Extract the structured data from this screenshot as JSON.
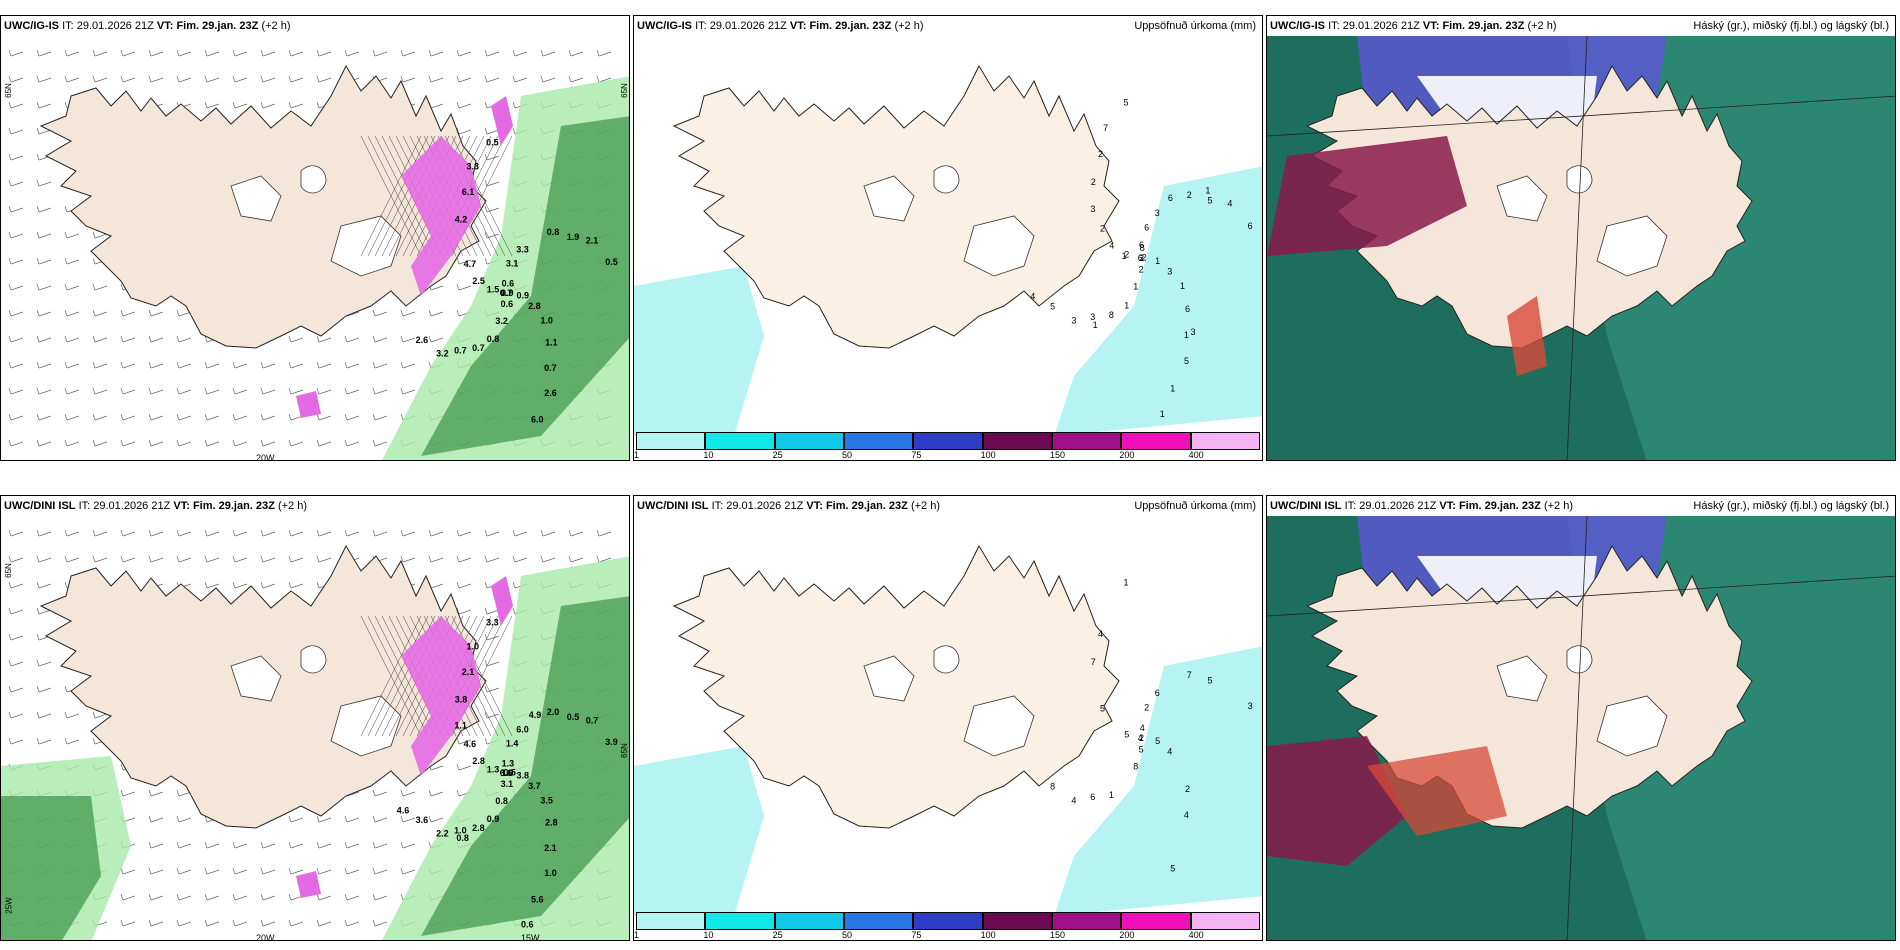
{
  "rows": [
    {
      "model": "UWC/IG-IS",
      "it_label": "IT:",
      "it_value": "29.01.2026 21Z",
      "vt_label": "VT:",
      "vt_value": "Fim. 29.jan. 23Z",
      "lead": "(+2 h)",
      "lon_labels": [
        "20W"
      ],
      "lat_labels": [
        "65N",
        "65N"
      ],
      "mid_numbers": [
        "2",
        "3",
        "8",
        "1",
        "2",
        "5",
        "1",
        "2",
        "3",
        "5",
        "3",
        "1",
        "2",
        "6",
        "8",
        "5",
        "6",
        "6",
        "2",
        "2",
        "2",
        "1",
        "3",
        "6",
        "5",
        "4",
        "4",
        "1",
        "7",
        "1",
        "4",
        "6",
        "1",
        "3",
        "2",
        "1",
        "6",
        "3",
        "1",
        "1"
      ],
      "left_numbers": [
        "0.9",
        "0.7",
        "0.6",
        "0.7",
        "1.5",
        "1.9",
        "3.2",
        "6.1",
        "2.8",
        "2.6",
        "3.3",
        "6.0",
        "4.7",
        "0.5",
        "0.7",
        "0.5",
        "1.1",
        "0.7",
        "0.8",
        "0.6",
        "4.2",
        "0.9",
        "3.2",
        "3.1",
        "2.6",
        "2.5",
        "2.1",
        "0.8",
        "3.3",
        "1.0"
      ]
    },
    {
      "model": "UWC/DINI ISL",
      "it_label": "IT:",
      "it_value": "29.01.2026 21Z",
      "vt_label": "VT:",
      "vt_value": "Fim. 29.jan. 23Z",
      "lead": "(+2 h)",
      "lon_labels": [
        "20W",
        "15W"
      ],
      "lat_labels": [
        "65N",
        "65N",
        "25W"
      ],
      "mid_numbers": [
        "2",
        "6",
        "4",
        "4",
        "5",
        "5",
        "8",
        "4",
        "4",
        "8",
        "6",
        "5",
        "5",
        "3",
        "1",
        "1",
        "2",
        "4",
        "7",
        "5",
        "7",
        "5",
        "4",
        "2"
      ],
      "left_numbers": [
        "1.0",
        "1.0",
        "1.3",
        "2.1",
        "1.3",
        "0.5",
        "0.8",
        "2.1",
        "3.7",
        "3.6",
        "6.0",
        "5.6",
        "4.6",
        "3.9",
        "2.8",
        "3.3",
        "2.8",
        "6.6",
        "2.0",
        "3.1",
        "3.8",
        "3.8",
        "2.2",
        "1.4",
        "1.0",
        "2.8",
        "0.7",
        "0.9",
        "1.0",
        "3.5",
        "4.6",
        "4.9",
        "0.6",
        "1.1",
        "0.5",
        "0.8"
      ]
    }
  ],
  "precip_title": "Uppsöfnuð úrkoma (mm)",
  "cloud_title": "Háský (gr.), miðský (fj.bl.) og lágský (bl.)",
  "colorbar": {
    "ticks": [
      "1",
      "10",
      "25",
      "50",
      "75",
      "100",
      "150",
      "200",
      "400"
    ],
    "colors": [
      "#b6f4f4",
      "#10e8e8",
      "#10c8e8",
      "#2a76e8",
      "#2e3cc8",
      "#6b0a50",
      "#a0108a",
      "#f010b8",
      "#f4b4f4"
    ]
  },
  "colors": {
    "land": "#f4e6d8",
    "land_light": "#fbf0e4",
    "snow_pink": "#e46ae4",
    "green_light": "#a8e8a8",
    "green_dark": "#1a7a2a",
    "cyan_precip": "#b6f4f4",
    "cloud_teal": "#2c8a74",
    "cloud_blue": "#5a58d0",
    "cloud_red": "#8a1a4a"
  }
}
